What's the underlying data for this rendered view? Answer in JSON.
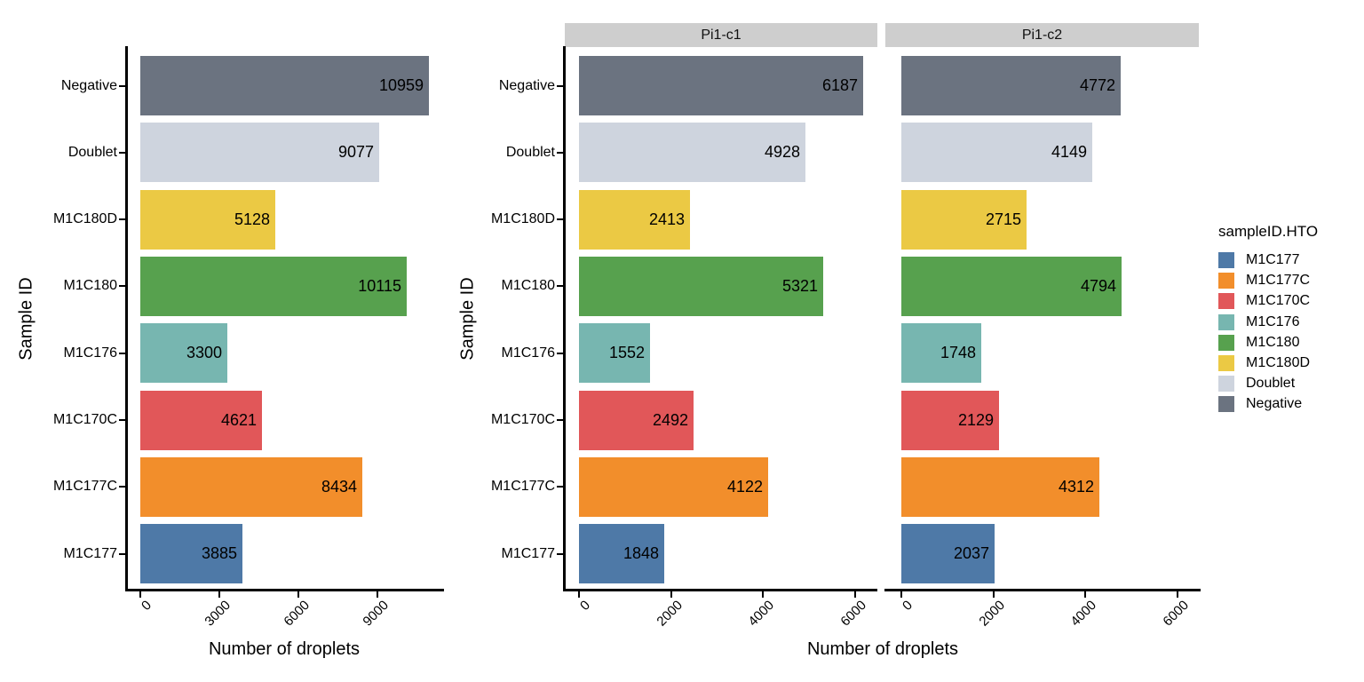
{
  "chart_data": {
    "type": "bar",
    "orientation": "horizontal",
    "xlabel": "Number of droplets",
    "ylabel": "Sample ID",
    "grid": false,
    "categories_top_to_bottom": [
      "Negative",
      "Doublet",
      "M1C180D",
      "M1C180",
      "M1C176",
      "M1C170C",
      "M1C177C",
      "M1C177"
    ],
    "panels": [
      {
        "facet_label": null,
        "x_ticks": [
          0,
          3000,
          6000,
          9000
        ],
        "x_max": 11500,
        "values": [
          10959,
          9077,
          5128,
          10115,
          3300,
          4621,
          8434,
          3885
        ]
      },
      {
        "facet_label": "Pi1-c1",
        "x_ticks": [
          0,
          2000,
          4000,
          6000
        ],
        "x_max": 6500,
        "values": [
          6187,
          4928,
          2413,
          5321,
          1552,
          2492,
          4122,
          1848
        ]
      },
      {
        "facet_label": "Pi1-c2",
        "x_ticks": [
          0,
          2000,
          4000,
          6000
        ],
        "x_max": 6500,
        "values": [
          4772,
          4149,
          2715,
          4794,
          1748,
          2129,
          4312,
          2037
        ]
      }
    ],
    "colors": {
      "M1C177": "#4e79a7",
      "M1C177C": "#f28e2b",
      "M1C170C": "#e15759",
      "M1C176": "#77b6b0",
      "M1C180": "#57a14e",
      "M1C180D": "#ebc944",
      "Doublet": "#ced4de",
      "Negative": "#6b7380"
    },
    "strip_bg": "#cecece",
    "axis_color": "#000000",
    "legend": {
      "title": "sampleID.HTO",
      "items": [
        "M1C177",
        "M1C177C",
        "M1C170C",
        "M1C176",
        "M1C180",
        "M1C180D",
        "Doublet",
        "Negative"
      ],
      "position": "right"
    }
  }
}
